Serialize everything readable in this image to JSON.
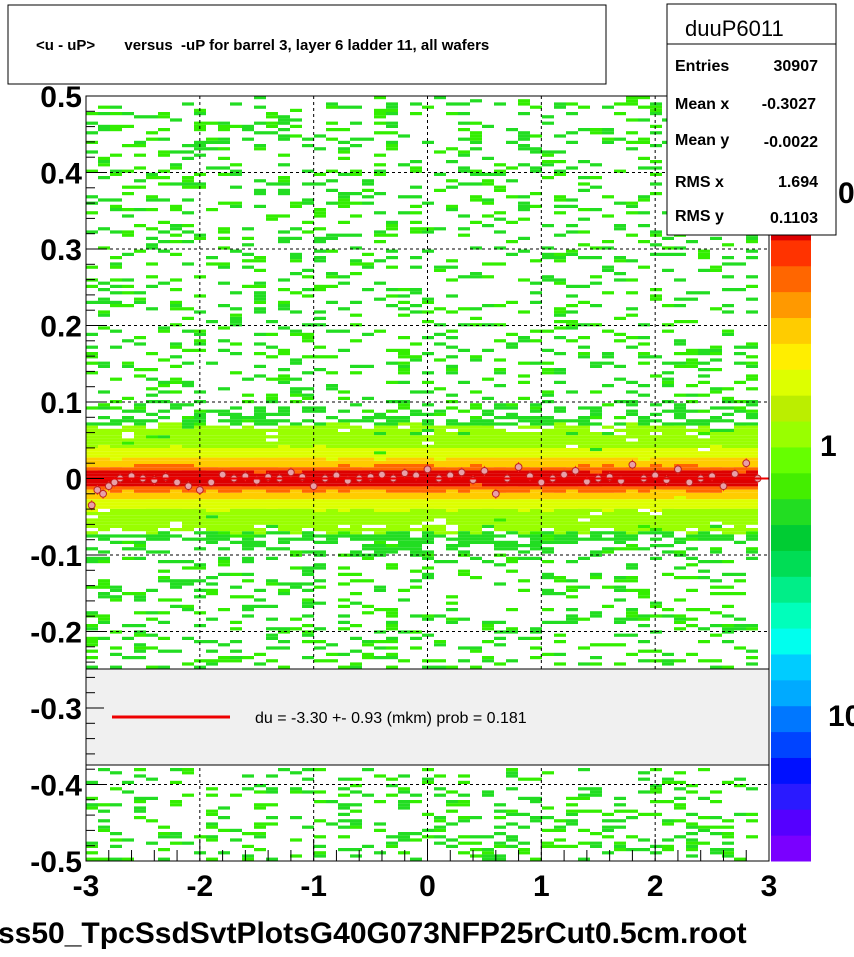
{
  "title": "<u - uP>       versus  -uP for barrel 3, layer 6 ladder 11, all wafers",
  "footer": "ss50_TpcSsdSvtPlotsG40G073NFP25rCut0.5cm.root",
  "stats": {
    "name": "duuP6011",
    "rows": [
      {
        "label": "Entries",
        "value": "30907"
      },
      {
        "label": "Mean x",
        "value": "-0.3027"
      },
      {
        "label": "Mean y",
        "value": "-0.0022"
      },
      {
        "label": "RMS x",
        "value": "1.694"
      },
      {
        "label": "RMS y",
        "value": "0.1103"
      }
    ]
  },
  "legend": {
    "text": "du =   -3.30 +-  0.93 (mkm) prob = 0.181",
    "line_color": "#ee0000"
  },
  "palette_labels": [
    "0",
    "1",
    "10"
  ],
  "palette_colors": [
    "#7a00ff",
    "#5500ff",
    "#2a1aff",
    "#0010ff",
    "#0044ff",
    "#0077ff",
    "#00aaff",
    "#00ccff",
    "#00ffee",
    "#00ffbb",
    "#00ee88",
    "#00dd55",
    "#00cc33",
    "#22dd22",
    "#44ee00",
    "#66ff00",
    "#99ff00",
    "#bbee00",
    "#ddff00",
    "#ffee00",
    "#ffcc00",
    "#ff9900",
    "#ff6600",
    "#ff3300",
    "#dd0000"
  ],
  "chart_data": {
    "type": "heatmap",
    "title": "<u - uP>       versus  -uP for barrel 3, layer 6 ladder 11, all wafers",
    "xlim": [
      -3,
      3
    ],
    "ylim": [
      -0.5,
      0.5
    ],
    "x_ticks": [
      "-3",
      "-2",
      "-1",
      "0",
      "1",
      "2",
      "3"
    ],
    "y_ticks": [
      "-0.5",
      "-0.4",
      "-0.3",
      "-0.2",
      "-0.1",
      "0",
      "0.1",
      "0.2",
      "0.3",
      "0.4",
      "0.5"
    ],
    "grid": true,
    "z_scale": "log",
    "band_center": 0.0,
    "band_rms": 0.1103,
    "profile_points": {
      "x": [
        -2.95,
        -2.9,
        -2.85,
        -2.8,
        -2.75,
        -2.7,
        -2.6,
        -2.5,
        -2.4,
        -2.3,
        -2.2,
        -2.1,
        -2.0,
        -1.9,
        -1.8,
        -1.7,
        -1.6,
        -1.5,
        -1.4,
        -1.3,
        -1.2,
        -1.1,
        -1.0,
        -0.9,
        -0.8,
        -0.7,
        -0.6,
        -0.5,
        -0.4,
        -0.3,
        -0.2,
        -0.1,
        0.0,
        0.1,
        0.2,
        0.3,
        0.4,
        0.5,
        0.6,
        0.7,
        0.8,
        0.9,
        1.0,
        1.1,
        1.2,
        1.3,
        1.4,
        1.5,
        1.6,
        1.7,
        1.8,
        1.9,
        2.0,
        2.1,
        2.2,
        2.3,
        2.4,
        2.5,
        2.6,
        2.7,
        2.8,
        2.9
      ],
      "y": [
        -0.035,
        -0.015,
        -0.02,
        -0.01,
        -0.005,
        0.0,
        0.003,
        0.0,
        -0.002,
        0.002,
        -0.005,
        -0.01,
        -0.015,
        -0.005,
        0.005,
        0.0,
        0.003,
        -0.003,
        0.002,
        0.0,
        0.008,
        0.002,
        -0.01,
        0.0,
        0.004,
        -0.003,
        0.0,
        0.002,
        0.005,
        0.0,
        0.007,
        0.004,
        0.012,
        0.0,
        0.004,
        0.008,
        -0.002,
        0.01,
        -0.02,
        0.0,
        0.015,
        0.003,
        -0.005,
        0.0,
        0.005,
        0.01,
        -0.004,
        0.0,
        0.002,
        -0.003,
        0.018,
        0.0,
        0.004,
        -0.002,
        0.012,
        -0.005,
        0.0,
        0.003,
        -0.01,
        0.006,
        0.02,
        0.0
      ]
    },
    "fit_value": -3.3,
    "fit_error": 0.93,
    "fit_prob": 0.181
  }
}
